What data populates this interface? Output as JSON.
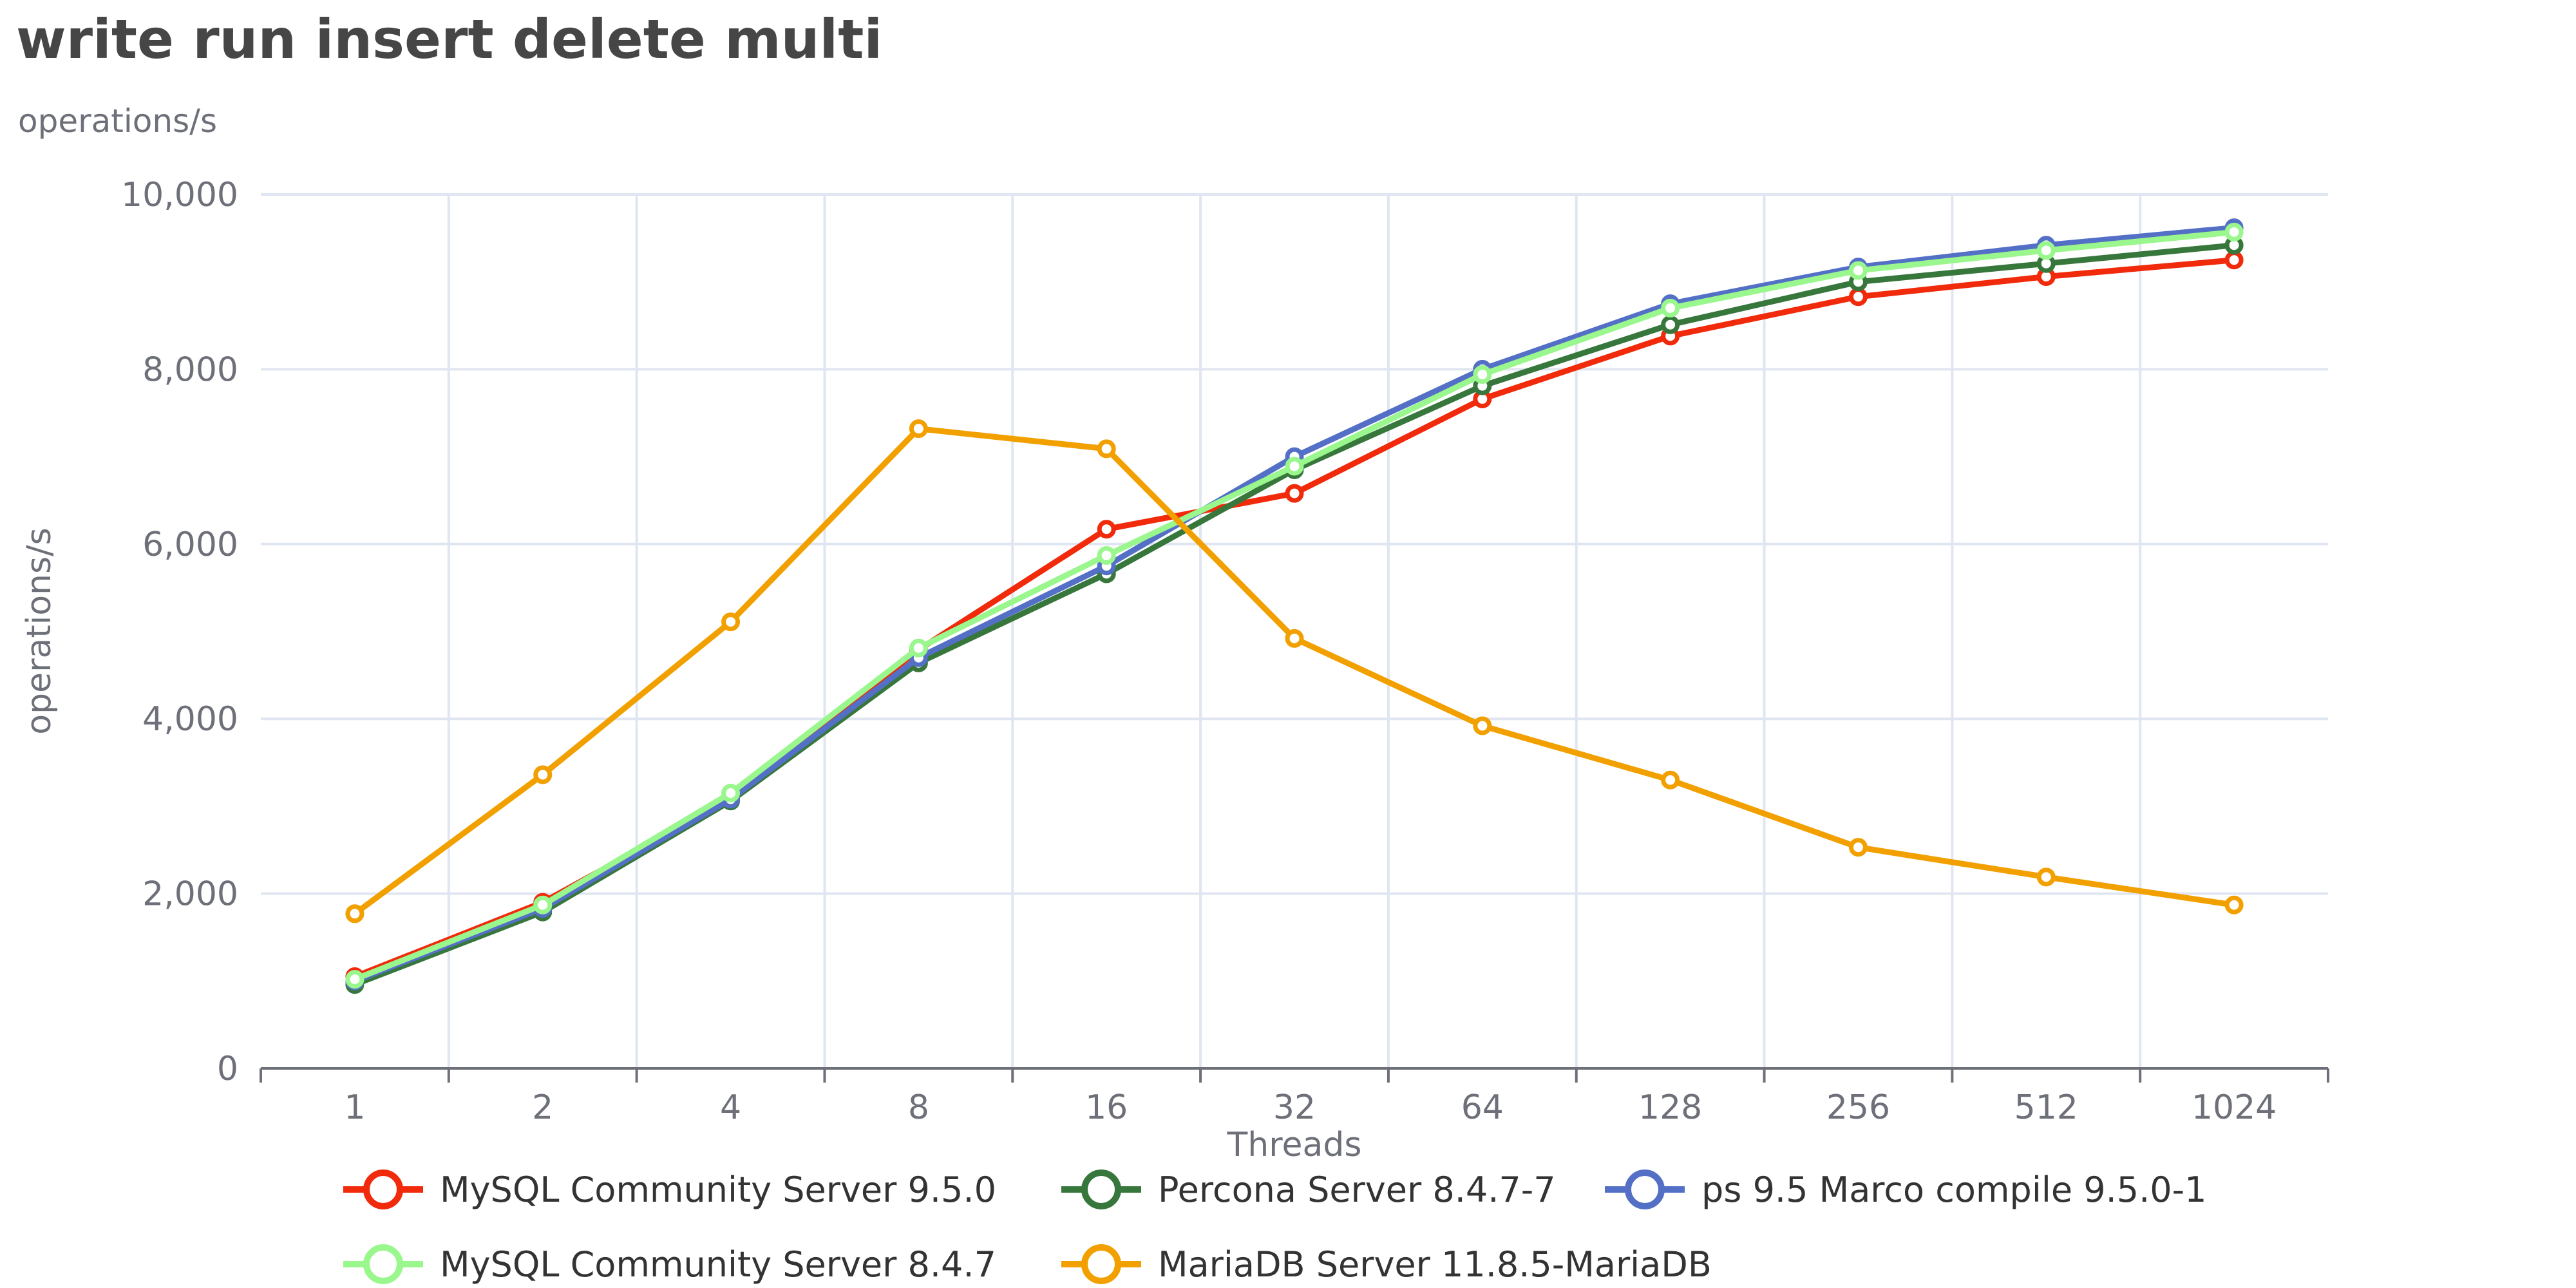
{
  "chart_data": {
    "type": "line",
    "title": "write run insert delete multi",
    "subtitle": "operations/s",
    "xlabel": "Threads",
    "ylabel": "operations/s",
    "categories": [
      "1",
      "2",
      "4",
      "8",
      "16",
      "32",
      "64",
      "128",
      "256",
      "512",
      "1024"
    ],
    "ylim": [
      0,
      10000
    ],
    "yticks": [
      0,
      2000,
      4000,
      6000,
      8000,
      10000
    ],
    "ytick_labels": [
      "0",
      "2,000",
      "4,000",
      "6,000",
      "8,000",
      "10,000"
    ],
    "grid": true,
    "legend_position": "bottom",
    "series": [
      {
        "name": "MySQL Community Server 9.5.0",
        "color": "#f02a0a",
        "values": [
          1050,
          1900,
          3080,
          4790,
          6170,
          6580,
          7660,
          8380,
          8830,
          9060,
          9250
        ]
      },
      {
        "name": "Percona Server 8.4.7-7",
        "color": "#37773c",
        "values": [
          960,
          1790,
          3060,
          4640,
          5660,
          6850,
          7810,
          8510,
          9000,
          9210,
          9420
        ]
      },
      {
        "name": "ps 9.5 Marco compile 9.5.0-1",
        "color": "#5470c6",
        "values": [
          1000,
          1830,
          3080,
          4700,
          5750,
          7000,
          8000,
          8750,
          9170,
          9420,
          9620
        ]
      },
      {
        "name": "MySQL Community Server 8.4.7",
        "color": "#9af78d",
        "values": [
          1020,
          1870,
          3150,
          4810,
          5870,
          6890,
          7940,
          8700,
          9130,
          9360,
          9570
        ]
      },
      {
        "name": "MariaDB Server 11.8.5-MariaDB",
        "color": "#f2a000",
        "values": [
          1770,
          3360,
          5110,
          7320,
          7090,
          4920,
          3920,
          3300,
          2530,
          2190,
          1870
        ]
      }
    ]
  }
}
